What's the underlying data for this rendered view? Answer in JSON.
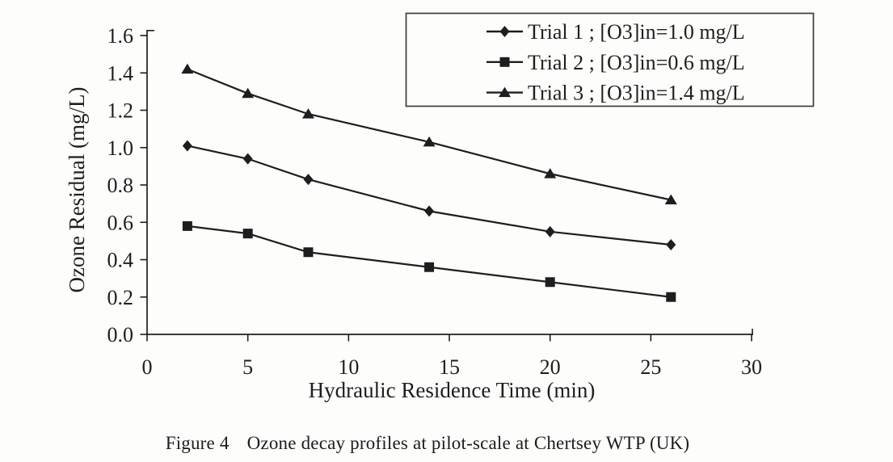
{
  "colors": {
    "ink": "#1e1e1e",
    "axis": "#2a2a2a",
    "legend_border": "#3c3c3c",
    "background": "#fdfdfc"
  },
  "chart_data": {
    "type": "line",
    "title": "",
    "xlabel": "Hydraulic Residence Time (min)",
    "ylabel": "Ozone Residual (mg/L)",
    "xlim": [
      0,
      30
    ],
    "ylim": [
      0,
      1.6
    ],
    "xticks": [
      0,
      5,
      10,
      15,
      20,
      25,
      30
    ],
    "yticks": [
      "0.0",
      "0.2",
      "0.4",
      "0.6",
      "0.8",
      "1.0",
      "1.2",
      "1.4",
      "1.6"
    ],
    "grid": false,
    "legend_position": "top-right",
    "x": [
      2,
      5,
      8,
      14,
      20,
      26
    ],
    "series": [
      {
        "name": "Trial 1 ; [O3]in=1.0 mg/L",
        "marker": "diamond",
        "values": [
          1.01,
          0.94,
          0.83,
          0.66,
          0.55,
          0.48
        ]
      },
      {
        "name": "Trial 2 ; [O3]in=0.6 mg/L",
        "marker": "square",
        "values": [
          0.58,
          0.54,
          0.44,
          0.36,
          0.28,
          0.2
        ]
      },
      {
        "name": "Trial 3 ; [O3]in=1.4 mg/L",
        "marker": "triangle",
        "values": [
          1.42,
          1.29,
          1.18,
          1.03,
          0.86,
          0.72
        ]
      }
    ]
  },
  "caption": {
    "figure_label": "Figure 4",
    "text": "Ozone decay profiles at pilot-scale at Chertsey WTP (UK)"
  }
}
